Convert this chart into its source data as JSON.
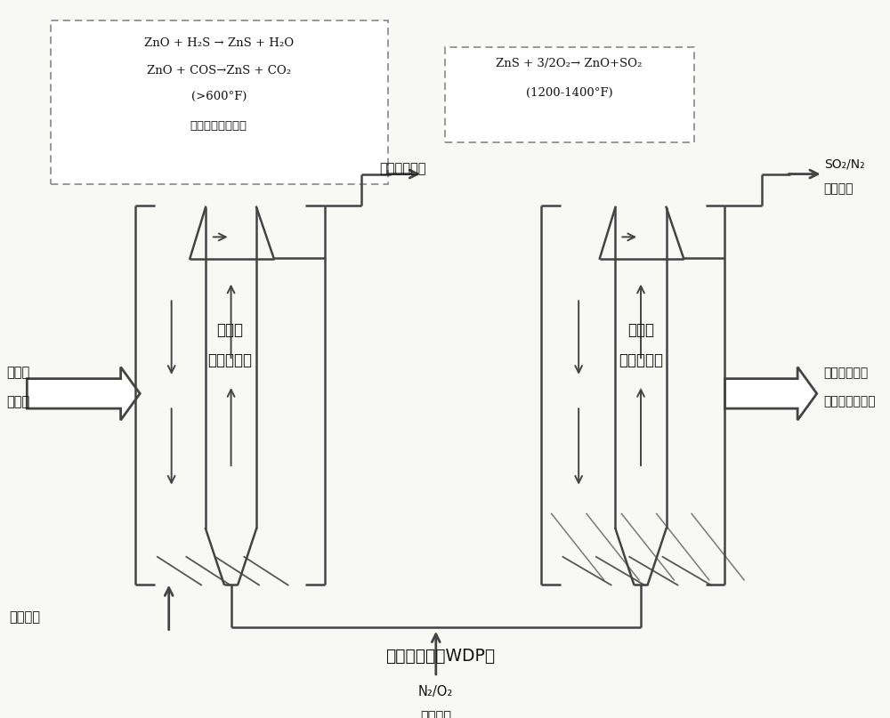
{
  "bg_color": "#f8f8f5",
  "line_color": "#444444",
  "fig_width": 10.0,
  "fig_height": 8.07,
  "box1_lines": [
    "ZnO + H₂S → ZnS + H₂O",
    "ZnO + COS→ZnS + CO₂",
    "(>600°F)",
    "（不依赖于压力）"
  ],
  "box2_lines": [
    "ZnS + 3/2O₂→ ZnO+SO₂",
    "(1200-1400°F)"
  ],
  "label_clean_syngas": "清洁的合成气",
  "label_so2_n2_1": "SO₂/N₂",
  "label_so2_n2_2": "至硫回取",
  "label_absorber_1": "吸附器",
  "label_absorber_2": "（反应器）",
  "label_regen_1": "再生器",
  "label_regen_2": "（反应器）",
  "label_regen_ads_in_1": "再生的",
  "label_regen_ads_in_2": "吸附剤",
  "label_raw_syngas": "原合成气",
  "label_n2o2_1": "N₂/O₂",
  "label_n2o2_2": "（空气）",
  "label_regen_ads_out_1": "再生的吸附剤",
  "label_regen_ads_out_2": "至吸附器混合区",
  "label_title": "温脱硫工艺（WDP）"
}
